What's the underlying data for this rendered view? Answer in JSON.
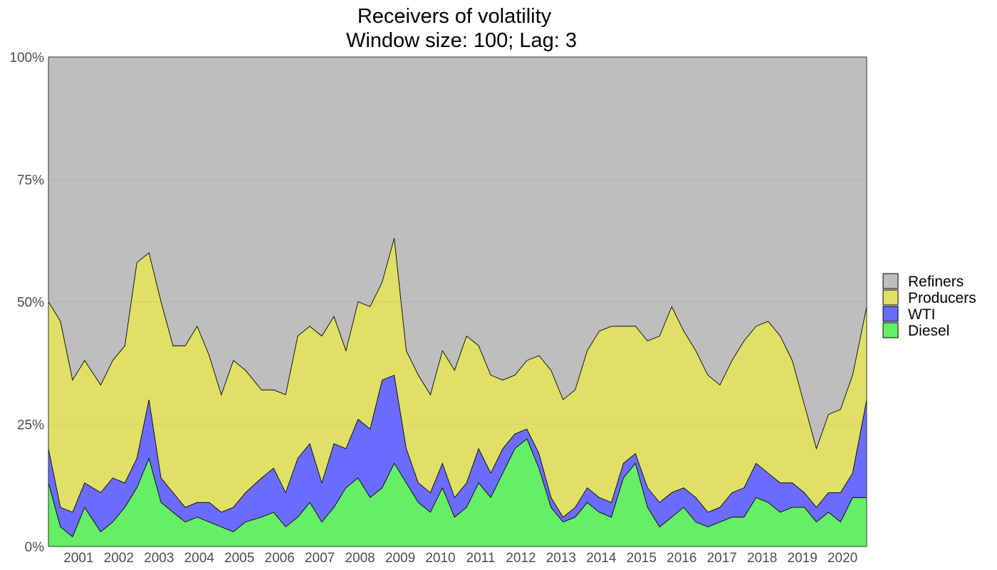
{
  "chart_data": {
    "type": "area",
    "stacked": true,
    "normalized": true,
    "title": "Receivers of volatility",
    "subtitle": "Window size: 100; Lag: 3",
    "xlabel": "",
    "ylabel": "",
    "xlim": [
      2000.7,
      2021.05
    ],
    "ylim": [
      0,
      1
    ],
    "y_ticks": [
      "0%",
      "25%",
      "50%",
      "75%",
      "100%"
    ],
    "x_ticks": [
      "2001",
      "2002",
      "2003",
      "2004",
      "2005",
      "2006",
      "2007",
      "2008",
      "2009",
      "2010",
      "2011",
      "2012",
      "2013",
      "2014",
      "2015",
      "2016",
      "2017",
      "2018",
      "2019",
      "2020"
    ],
    "grid": true,
    "legend_position": "right",
    "stack_order_bottom_to_top": [
      "Diesel",
      "WTI",
      "Producers",
      "Refiners"
    ],
    "x": [
      2000.7,
      2001.0,
      2001.3,
      2001.6,
      2002.0,
      2002.3,
      2002.6,
      2002.9,
      2003.2,
      2003.5,
      2003.8,
      2004.1,
      2004.4,
      2004.7,
      2005.0,
      2005.3,
      2005.6,
      2006.0,
      2006.3,
      2006.6,
      2006.9,
      2007.2,
      2007.5,
      2007.8,
      2008.1,
      2008.4,
      2008.7,
      2009.0,
      2009.3,
      2009.6,
      2009.9,
      2010.2,
      2010.5,
      2010.8,
      2011.1,
      2011.4,
      2011.7,
      2012.0,
      2012.3,
      2012.6,
      2012.9,
      2013.2,
      2013.5,
      2013.8,
      2014.1,
      2014.4,
      2014.7,
      2015.0,
      2015.3,
      2015.6,
      2015.9,
      2016.2,
      2016.5,
      2016.8,
      2017.1,
      2017.4,
      2017.7,
      2018.0,
      2018.3,
      2018.6,
      2018.9,
      2019.2,
      2019.5,
      2019.8,
      2020.1,
      2020.4,
      2020.7,
      2021.05
    ],
    "series": [
      {
        "name": "Diesel",
        "color": "#66ee66",
        "values": [
          0.13,
          0.04,
          0.02,
          0.08,
          0.03,
          0.05,
          0.08,
          0.12,
          0.18,
          0.09,
          0.07,
          0.05,
          0.06,
          0.05,
          0.04,
          0.03,
          0.05,
          0.06,
          0.07,
          0.04,
          0.06,
          0.09,
          0.05,
          0.08,
          0.12,
          0.14,
          0.1,
          0.12,
          0.17,
          0.13,
          0.09,
          0.07,
          0.12,
          0.06,
          0.08,
          0.13,
          0.1,
          0.15,
          0.2,
          0.22,
          0.16,
          0.08,
          0.05,
          0.06,
          0.09,
          0.07,
          0.06,
          0.14,
          0.17,
          0.08,
          0.04,
          0.06,
          0.08,
          0.05,
          0.04,
          0.05,
          0.06,
          0.06,
          0.1,
          0.09,
          0.07,
          0.08,
          0.08,
          0.05,
          0.07,
          0.05,
          0.1,
          0.1
        ]
      },
      {
        "name": "WTI",
        "color": "#6b6bff",
        "values": [
          0.07,
          0.04,
          0.05,
          0.05,
          0.08,
          0.09,
          0.05,
          0.06,
          0.12,
          0.05,
          0.04,
          0.03,
          0.03,
          0.04,
          0.03,
          0.05,
          0.06,
          0.08,
          0.09,
          0.07,
          0.12,
          0.12,
          0.08,
          0.13,
          0.08,
          0.12,
          0.14,
          0.22,
          0.18,
          0.07,
          0.04,
          0.04,
          0.05,
          0.04,
          0.05,
          0.07,
          0.05,
          0.05,
          0.03,
          0.02,
          0.03,
          0.02,
          0.01,
          0.02,
          0.03,
          0.03,
          0.03,
          0.03,
          0.02,
          0.04,
          0.05,
          0.05,
          0.04,
          0.05,
          0.03,
          0.03,
          0.05,
          0.06,
          0.07,
          0.06,
          0.06,
          0.05,
          0.03,
          0.03,
          0.04,
          0.06,
          0.05,
          0.2
        ]
      },
      {
        "name": "Producers",
        "color": "#e0e066",
        "values": [
          0.3,
          0.38,
          0.27,
          0.25,
          0.22,
          0.24,
          0.28,
          0.4,
          0.3,
          0.36,
          0.3,
          0.33,
          0.36,
          0.3,
          0.24,
          0.3,
          0.25,
          0.18,
          0.16,
          0.2,
          0.25,
          0.24,
          0.3,
          0.26,
          0.2,
          0.24,
          0.25,
          0.2,
          0.28,
          0.2,
          0.22,
          0.2,
          0.23,
          0.26,
          0.3,
          0.21,
          0.2,
          0.14,
          0.12,
          0.14,
          0.2,
          0.26,
          0.24,
          0.24,
          0.28,
          0.34,
          0.36,
          0.28,
          0.26,
          0.3,
          0.34,
          0.38,
          0.32,
          0.3,
          0.28,
          0.25,
          0.27,
          0.3,
          0.28,
          0.31,
          0.3,
          0.25,
          0.18,
          0.12,
          0.16,
          0.17,
          0.2,
          0.19
        ]
      },
      {
        "name": "Refiners",
        "color": "#bebebe",
        "values": [
          0.5,
          0.54,
          0.66,
          0.62,
          0.67,
          0.62,
          0.59,
          0.42,
          0.4,
          0.5,
          0.59,
          0.59,
          0.55,
          0.61,
          0.69,
          0.62,
          0.64,
          0.68,
          0.68,
          0.69,
          0.57,
          0.55,
          0.57,
          0.53,
          0.6,
          0.5,
          0.51,
          0.46,
          0.37,
          0.6,
          0.65,
          0.69,
          0.6,
          0.64,
          0.57,
          0.59,
          0.65,
          0.66,
          0.65,
          0.62,
          0.61,
          0.64,
          0.7,
          0.68,
          0.6,
          0.56,
          0.55,
          0.55,
          0.55,
          0.58,
          0.57,
          0.51,
          0.56,
          0.6,
          0.65,
          0.67,
          0.62,
          0.58,
          0.55,
          0.54,
          0.57,
          0.62,
          0.71,
          0.8,
          0.73,
          0.72,
          0.65,
          0.51
        ]
      }
    ]
  }
}
